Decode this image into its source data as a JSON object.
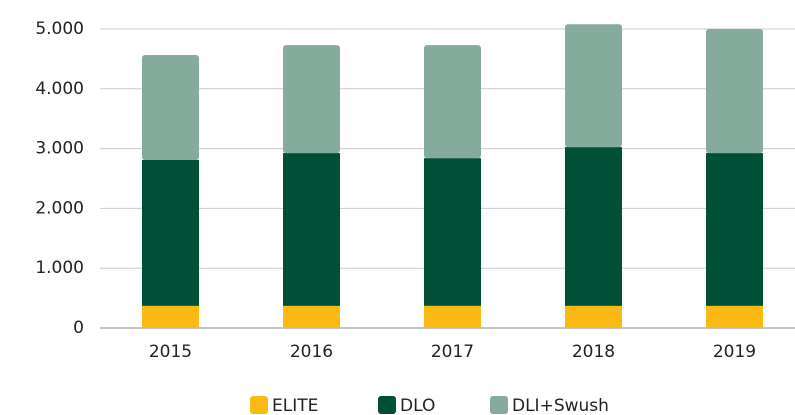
{
  "chart_data": {
    "type": "stacked_bar",
    "categories": [
      "2015",
      "2016",
      "2017",
      "2018",
      "2019"
    ],
    "series": [
      {
        "name": "ELITE",
        "color": "#fbb916",
        "values": [
          370,
          370,
          370,
          370,
          370
        ]
      },
      {
        "name": "DLO",
        "color": "#005037",
        "values": [
          2440,
          2555,
          2470,
          2655,
          2555
        ]
      },
      {
        "name": "DLI+Swush",
        "color": "#85ab9c",
        "values": [
          1755,
          1805,
          1890,
          2055,
          2075
        ]
      }
    ],
    "ylim": [
      0,
      5100
    ],
    "yticks": [
      0,
      {
        "value": 1000,
        "label": "1.000"
      },
      {
        "value": 2000,
        "label": "2.000"
      },
      {
        "value": 3000,
        "label": "3.000"
      },
      {
        "value": 4000,
        "label": "4.000"
      },
      {
        "value": 5000,
        "label": "5.000"
      }
    ],
    "grid": true,
    "legend": "bottom"
  }
}
